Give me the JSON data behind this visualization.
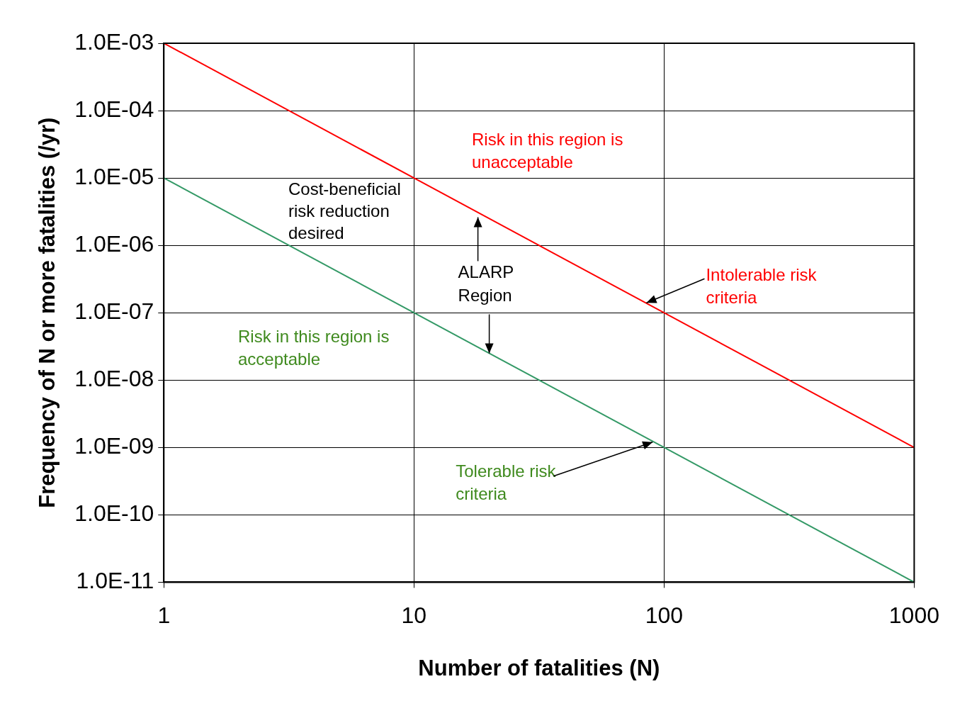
{
  "chart_data": {
    "type": "line",
    "xlabel": "Number of fatalities (N)",
    "ylabel": "Frequency of N or more fatalities (/yr)",
    "x": [
      1,
      1000
    ],
    "series": [
      {
        "color": "#ff0000",
        "values": [
          0.001,
          1e-09
        ]
      },
      {
        "color": "#339966",
        "values": [
          1e-05,
          1e-11
        ]
      }
    ],
    "log": "xy",
    "xlim": [
      1,
      1000
    ],
    "xticks": [
      1,
      10,
      100,
      1000
    ],
    "ylim": [
      1e-11,
      0.001
    ],
    "yticks": [
      {
        "value": 1e-11,
        "label": "1.0E-11"
      },
      {
        "value": 1e-10,
        "label": "1.0E-10"
      },
      {
        "value": 1e-09,
        "label": "1.0E-09"
      },
      {
        "value": 1e-08,
        "label": "1.0E-08"
      },
      {
        "value": 1e-07,
        "label": "1.0E-07"
      },
      {
        "value": 1e-06,
        "label": "1.0E-06"
      },
      {
        "value": 1e-05,
        "label": "1.0E-05"
      },
      {
        "value": 0.0001,
        "label": "1.0E-04"
      },
      {
        "value": 0.001,
        "label": "1.0E-03"
      }
    ],
    "grid": true,
    "marker": "none",
    "line_style": "solid",
    "annotations": [
      "Risk in this region is unacceptable",
      "Cost-beneficial risk reduction desired",
      {
        "text": "ALARP Region",
        "x": 20,
        "y": 2.5e-08
      },
      "Risk in this region is acceptable",
      {
        "text": "Intolerable risk criteria",
        "x": 85,
        "y": 1.4e-07
      },
      {
        "text": "Tolerable risk criteria",
        "x": 90,
        "y": 1.2e-09
      }
    ]
  }
}
